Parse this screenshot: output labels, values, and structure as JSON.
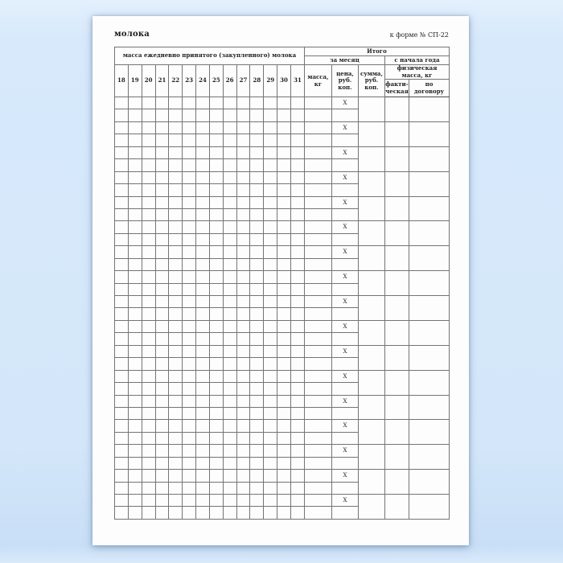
{
  "document": {
    "title": "молока",
    "form_reference": "к форме № СП-22"
  },
  "table": {
    "header": {
      "days_span_label": "масса ежедневно принятого (закупленного) молока",
      "total_label": "Итого",
      "per_month_label": "за месяц",
      "year_to_date_label": "с начала года",
      "mass_label": "масса,\nкг",
      "price_label": "цена,\nруб.\nкоп.",
      "sum_label": "сумма,\nруб.\nкоп.",
      "physical_mass_label": "физическая\nмасса, кг",
      "actual_label": "факти-\nческая",
      "by_contract_label": "по\nдоговору"
    },
    "day_numbers": [
      "18",
      "19",
      "20",
      "21",
      "22",
      "23",
      "24",
      "25",
      "26",
      "27",
      "28",
      "29",
      "30",
      "31"
    ],
    "body": {
      "group_count": 17,
      "rows_per_group": 2,
      "x_mark": "X"
    }
  }
}
